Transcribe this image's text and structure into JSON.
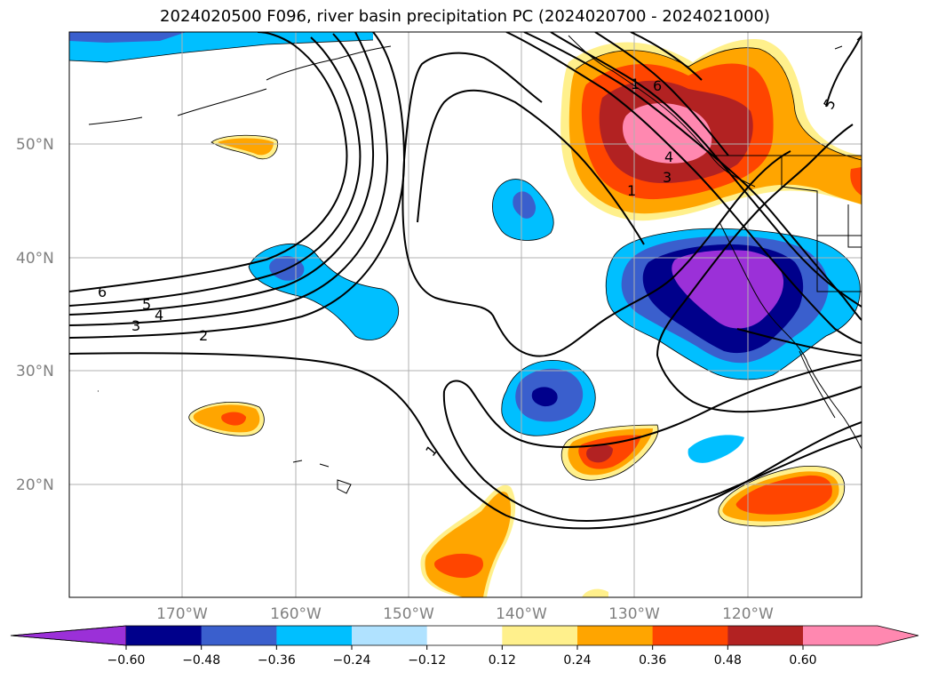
{
  "title": "2024020500 F096, river basin precipitation PC (2024020700 - 2024021000)",
  "lat_labels": [
    "50°N",
    "40°N",
    "30°N",
    "20°N"
  ],
  "lon_labels": [
    "170°W",
    "160°W",
    "150°W",
    "140°W",
    "130°W",
    "120°W"
  ],
  "contour_labels": [
    "6",
    "5",
    "4",
    "3",
    "2",
    "1",
    "1",
    "1",
    "3",
    "4",
    "6",
    "5"
  ],
  "colorbar": {
    "ticks": [
      "−0.60",
      "−0.48",
      "−0.36",
      "−0.24",
      "−0.12",
      "0.12",
      "0.24",
      "0.36",
      "0.48",
      "0.60"
    ],
    "colors": [
      "#9b30d8",
      "#00008b",
      "#3a5fcd",
      "#00bfff",
      "#b0e2ff",
      "#ffffff",
      "#fff08c",
      "#ffa500",
      "#ff4500",
      "#b22222",
      "#ff88b0"
    ]
  }
}
